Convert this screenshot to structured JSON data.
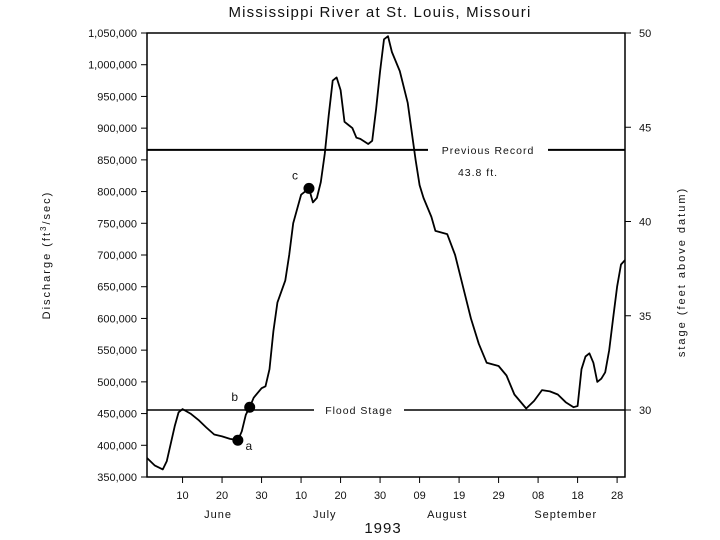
{
  "chart_data": {
    "type": "line",
    "title": "Mississippi River at St. Louis, Missouri",
    "ylabel": "Discharge (ft³/sec)",
    "ylabel_parts": {
      "before": "Discharge (ft",
      "sup": "3",
      "after": "/sec)"
    },
    "y2label": "stage (feet above datum)",
    "xlabel": "1993",
    "ylim": [
      350000,
      1050000
    ],
    "yticks": [
      {
        "value": 350000,
        "label": "350,000"
      },
      {
        "value": 400000,
        "label": "400,000"
      },
      {
        "value": 450000,
        "label": "450,000"
      },
      {
        "value": 500000,
        "label": "500,000"
      },
      {
        "value": 550000,
        "label": "550,000"
      },
      {
        "value": 600000,
        "label": "600,000"
      },
      {
        "value": 650000,
        "label": "650,000"
      },
      {
        "value": 700000,
        "label": "700,000"
      },
      {
        "value": 750000,
        "label": "750,000"
      },
      {
        "value": 800000,
        "label": "800,000"
      },
      {
        "value": 850000,
        "label": "850,000"
      },
      {
        "value": 900000,
        "label": "900,000"
      },
      {
        "value": 950000,
        "label": "950,000"
      },
      {
        "value": 1000000,
        "label": "1,000,000"
      },
      {
        "value": 1050000,
        "label": "1,050,000"
      }
    ],
    "y2ticks": [
      {
        "value": 30,
        "label": "30"
      },
      {
        "value": 35,
        "label": "35"
      },
      {
        "value": 40,
        "label": "40"
      },
      {
        "value": 45,
        "label": "45"
      },
      {
        "value": 50,
        "label": "50"
      }
    ],
    "xlim": [
      "1993-06-01",
      "1993-09-30"
    ],
    "xticks": [
      {
        "date": "1993-06-10",
        "label": "10"
      },
      {
        "date": "1993-06-20",
        "label": "20"
      },
      {
        "date": "1993-06-30",
        "label": "30"
      },
      {
        "date": "1993-07-10",
        "label": "10"
      },
      {
        "date": "1993-07-20",
        "label": "20"
      },
      {
        "date": "1993-07-30",
        "label": "30"
      },
      {
        "date": "1993-08-09",
        "label": "09"
      },
      {
        "date": "1993-08-19",
        "label": "19"
      },
      {
        "date": "1993-08-29",
        "label": "29"
      },
      {
        "date": "1993-09-08",
        "label": "08"
      },
      {
        "date": "1993-09-18",
        "label": "18"
      },
      {
        "date": "1993-09-28",
        "label": "28"
      }
    ],
    "months": [
      {
        "label": "June",
        "date": "1993-06-19"
      },
      {
        "label": "July",
        "date": "1993-07-16"
      },
      {
        "label": "August",
        "date": "1993-08-16"
      },
      {
        "label": "September",
        "date": "1993-09-15"
      }
    ],
    "series": [
      {
        "points": [
          [
            "1993-06-01",
            380000
          ],
          [
            "1993-06-03",
            368000
          ],
          [
            "1993-06-05",
            362000
          ],
          [
            "1993-06-06",
            375000
          ],
          [
            "1993-06-08",
            430000
          ],
          [
            "1993-06-09",
            452000
          ],
          [
            "1993-06-10",
            457000
          ],
          [
            "1993-06-12",
            450000
          ],
          [
            "1993-06-14",
            440000
          ],
          [
            "1993-06-16",
            428000
          ],
          [
            "1993-06-18",
            417000
          ],
          [
            "1993-06-20",
            414000
          ],
          [
            "1993-06-22",
            410000
          ],
          [
            "1993-06-24",
            408000
          ],
          [
            "1993-06-25",
            422000
          ],
          [
            "1993-06-26",
            448000
          ],
          [
            "1993-06-27",
            460000
          ],
          [
            "1993-06-28",
            475000
          ],
          [
            "1993-06-30",
            490000
          ],
          [
            "1993-07-01",
            493000
          ],
          [
            "1993-07-02",
            520000
          ],
          [
            "1993-07-03",
            580000
          ],
          [
            "1993-07-04",
            625000
          ],
          [
            "1993-07-06",
            660000
          ],
          [
            "1993-07-07",
            700000
          ],
          [
            "1993-07-08",
            750000
          ],
          [
            "1993-07-10",
            795000
          ],
          [
            "1993-07-12",
            805000
          ],
          [
            "1993-07-13",
            783000
          ],
          [
            "1993-07-14",
            790000
          ],
          [
            "1993-07-15",
            815000
          ],
          [
            "1993-07-16",
            860000
          ],
          [
            "1993-07-17",
            920000
          ],
          [
            "1993-07-18",
            975000
          ],
          [
            "1993-07-19",
            980000
          ],
          [
            "1993-07-20",
            960000
          ],
          [
            "1993-07-21",
            910000
          ],
          [
            "1993-07-22",
            905000
          ],
          [
            "1993-07-23",
            900000
          ],
          [
            "1993-07-24",
            885000
          ],
          [
            "1993-07-25",
            883000
          ],
          [
            "1993-07-27",
            875000
          ],
          [
            "1993-07-28",
            880000
          ],
          [
            "1993-07-29",
            930000
          ],
          [
            "1993-07-30",
            990000
          ],
          [
            "1993-07-31",
            1040000
          ],
          [
            "1993-08-01",
            1045000
          ],
          [
            "1993-08-02",
            1020000
          ],
          [
            "1993-08-04",
            990000
          ],
          [
            "1993-08-06",
            940000
          ],
          [
            "1993-08-08",
            850000
          ],
          [
            "1993-08-09",
            810000
          ],
          [
            "1993-08-10",
            790000
          ],
          [
            "1993-08-12",
            760000
          ],
          [
            "1993-08-13",
            738000
          ],
          [
            "1993-08-16",
            733000
          ],
          [
            "1993-08-18",
            700000
          ],
          [
            "1993-08-20",
            650000
          ],
          [
            "1993-08-22",
            600000
          ],
          [
            "1993-08-24",
            560000
          ],
          [
            "1993-08-26",
            530000
          ],
          [
            "1993-08-29",
            525000
          ],
          [
            "1993-08-31",
            510000
          ],
          [
            "1993-09-02",
            480000
          ],
          [
            "1993-09-05",
            458000
          ],
          [
            "1993-09-07",
            470000
          ],
          [
            "1993-09-09",
            487000
          ],
          [
            "1993-09-11",
            485000
          ],
          [
            "1993-09-13",
            480000
          ],
          [
            "1993-09-15",
            468000
          ],
          [
            "1993-09-17",
            460000
          ],
          [
            "1993-09-18",
            462000
          ],
          [
            "1993-09-19",
            520000
          ],
          [
            "1993-09-20",
            540000
          ],
          [
            "1993-09-21",
            545000
          ],
          [
            "1993-09-22",
            530000
          ],
          [
            "1993-09-23",
            500000
          ],
          [
            "1993-09-24",
            505000
          ],
          [
            "1993-09-25",
            515000
          ],
          [
            "1993-09-26",
            550000
          ],
          [
            "1993-09-27",
            600000
          ],
          [
            "1993-09-28",
            650000
          ],
          [
            "1993-09-29",
            685000
          ],
          [
            "1993-09-30",
            692000
          ]
        ]
      }
    ],
    "reference_lines": [
      {
        "label": "Flood Stage",
        "stage": 30,
        "value": 457000
      },
      {
        "label": "Previous Record",
        "sublabel": "43.8 ft.",
        "stage": 43.8,
        "value": 810000
      }
    ],
    "highlight_points": [
      {
        "label": "a",
        "date": "1993-06-24",
        "value": 408000
      },
      {
        "label": "b",
        "date": "1993-06-27",
        "value": 460000
      },
      {
        "label": "c",
        "date": "1993-07-12",
        "value": 805000
      }
    ],
    "grid": false,
    "legend": "none"
  }
}
